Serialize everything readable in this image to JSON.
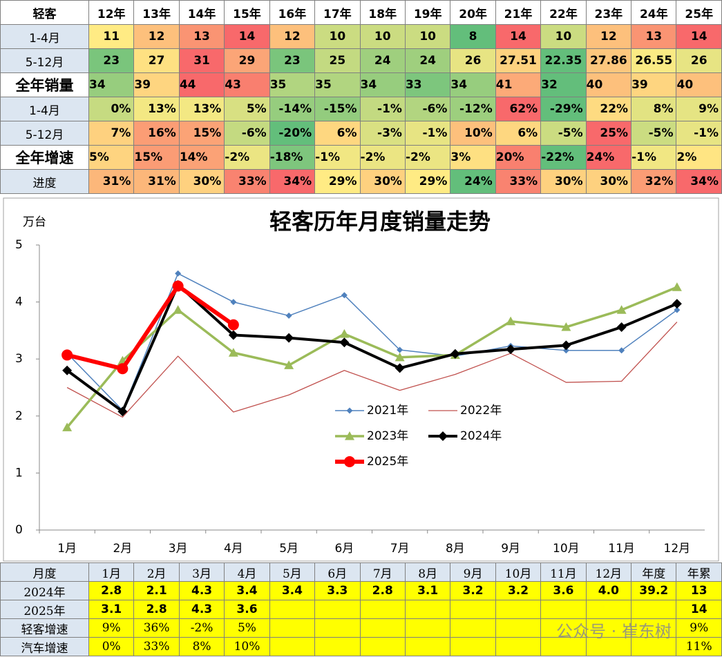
{
  "top_table": {
    "header": [
      "轻客",
      "12年",
      "13年",
      "14年",
      "15年",
      "16年",
      "17年",
      "18年",
      "19年",
      "20年",
      "21年",
      "22年",
      "23年",
      "24年",
      "25年"
    ],
    "rows": [
      {
        "label": "1-4月",
        "cells": [
          "11",
          "12",
          "13",
          "14",
          "12",
          "10",
          "10",
          "10",
          "8",
          "14",
          "10",
          "12",
          "13",
          "14"
        ]
      },
      {
        "label": "5-12月",
        "cells": [
          "23",
          "27",
          "31",
          "29",
          "23",
          "25",
          "24",
          "24",
          "26",
          "27.51",
          "22.35",
          "27.86",
          "26.55",
          "26"
        ]
      },
      {
        "label": "全年销量",
        "cells": [
          "34",
          "39",
          "44",
          "43",
          "35",
          "35",
          "34",
          "33",
          "34",
          "41",
          "32",
          "40",
          "39",
          "40"
        ]
      },
      {
        "label": "1-4月",
        "cells": [
          "0%",
          "13%",
          "13%",
          "5%",
          "-14%",
          "-15%",
          "-1%",
          "-6%",
          "-12%",
          "62%",
          "-29%",
          "22%",
          "8%",
          "9%"
        ]
      },
      {
        "label": "5-12月",
        "cells": [
          "7%",
          "16%",
          "15%",
          "-6%",
          "-20%",
          "6%",
          "-3%",
          "-1%",
          "10%",
          "6%",
          "-5%",
          "25%",
          "-5%",
          "-1%"
        ]
      },
      {
        "label": "全年增速",
        "cells": [
          "5%",
          "15%",
          "14%",
          "-2%",
          "-18%",
          "-1%",
          "-2%",
          "-2%",
          "3%",
          "20%",
          "-22%",
          "24%",
          "-1%",
          "2%"
        ]
      },
      {
        "label": "进度",
        "cells": [
          "31%",
          "31%",
          "30%",
          "33%",
          "34%",
          "29%",
          "30%",
          "29%",
          "24%",
          "33%",
          "30%",
          "30%",
          "32%",
          "34%"
        ]
      }
    ]
  },
  "chart_data": {
    "type": "line",
    "title": "轻客历年月度销量走势",
    "y_label": "万台",
    "categories": [
      "1月",
      "2月",
      "3月",
      "4月",
      "5月",
      "6月",
      "7月",
      "8月",
      "9月",
      "10月",
      "11月",
      "12月"
    ],
    "ylim": [
      0,
      5
    ],
    "yticks": [
      0,
      1,
      2,
      3,
      4,
      5
    ],
    "series": [
      {
        "name": "2021年",
        "color": "#4f81bd",
        "width": 1.5,
        "marker": "diamond",
        "values": [
          3.1,
          2.1,
          4.5,
          4.0,
          3.76,
          4.12,
          3.16,
          3.05,
          3.23,
          3.15,
          3.15,
          3.86
        ]
      },
      {
        "name": "2022年",
        "color": "#c0504d",
        "width": 1.3,
        "marker": "none",
        "values": [
          2.5,
          1.98,
          3.05,
          2.07,
          2.37,
          2.8,
          2.45,
          2.73,
          3.1,
          2.59,
          2.61,
          3.65
        ]
      },
      {
        "name": "2023年",
        "color": "#9bbb59",
        "width": 3.5,
        "marker": "triangle",
        "values": [
          1.8,
          2.97,
          3.86,
          3.11,
          2.89,
          3.44,
          3.03,
          3.07,
          3.66,
          3.56,
          3.86,
          4.26
        ]
      },
      {
        "name": "2024年",
        "color": "#000000",
        "width": 4,
        "marker": "diamond",
        "values": [
          2.8,
          2.08,
          4.3,
          3.42,
          3.37,
          3.29,
          2.84,
          3.09,
          3.17,
          3.24,
          3.56,
          3.97
        ]
      },
      {
        "name": "2025年",
        "color": "#ff0000",
        "width": 6,
        "marker": "circle",
        "values": [
          3.07,
          2.83,
          4.28,
          3.6,
          null,
          null,
          null,
          null,
          null,
          null,
          null,
          null
        ]
      }
    ]
  },
  "bottom_table": {
    "header": [
      "月度",
      "1月",
      "2月",
      "3月",
      "4月",
      "5月",
      "6月",
      "7月",
      "8月",
      "9月",
      "10月",
      "11月",
      "12月",
      "年度",
      "年累"
    ],
    "rows": [
      {
        "label": "2024年",
        "cells": [
          "2.8",
          "2.1",
          "4.3",
          "3.4",
          "3.4",
          "3.3",
          "2.8",
          "3.1",
          "3.2",
          "3.2",
          "3.6",
          "4.0",
          "39.2",
          "13"
        ]
      },
      {
        "label": "2025年",
        "cells": [
          "3.1",
          "2.8",
          "4.3",
          "3.6",
          null,
          null,
          null,
          null,
          null,
          null,
          null,
          null,
          null,
          "14"
        ]
      },
      {
        "label": "轻客增速",
        "cells": [
          "9%",
          "36%",
          "-2%",
          "5%",
          null,
          null,
          null,
          null,
          null,
          null,
          null,
          null,
          null,
          "9%"
        ]
      },
      {
        "label": "汽车增速",
        "cells": [
          "0%",
          "33%",
          "8%",
          "10%",
          null,
          null,
          null,
          null,
          null,
          null,
          null,
          null,
          null,
          "11%"
        ]
      }
    ]
  },
  "watermark": "公众号 · 崔东树"
}
